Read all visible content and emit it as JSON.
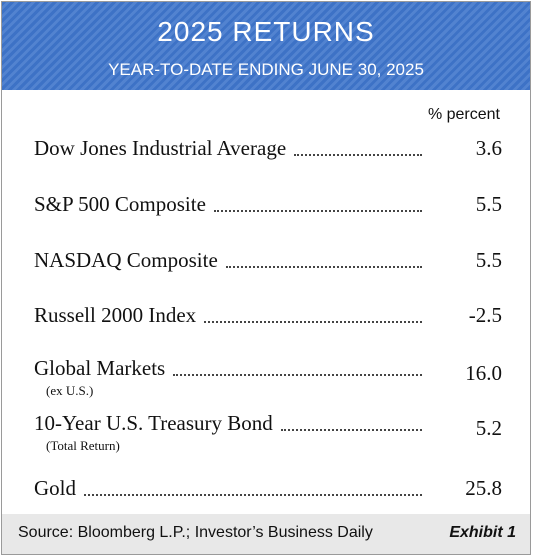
{
  "header": {
    "title": "2025 RETURNS",
    "subtitle": "YEAR-TO-DATE ENDING JUNE 30, 2025"
  },
  "table": {
    "unit_label": "% percent",
    "rows": [
      {
        "label": "Dow Jones Industrial Average",
        "value": "3.6"
      },
      {
        "label": "S&P 500 Composite",
        "value": "5.5"
      },
      {
        "label": "NASDAQ Composite",
        "value": "5.5"
      },
      {
        "label": "Russell 2000 Index",
        "value": "-2.5"
      },
      {
        "label": "Global Markets",
        "note": "(ex U.S.)",
        "value": "16.0"
      },
      {
        "label": "10-Year U.S. Treasury Bond",
        "note": "(Total Return)",
        "value": "5.2"
      },
      {
        "label": "Gold",
        "value": "25.8"
      }
    ]
  },
  "footer": {
    "source": "Source: Bloomberg L.P.; Investor’s Business Daily",
    "exhibit": "Exhibit 1"
  }
}
